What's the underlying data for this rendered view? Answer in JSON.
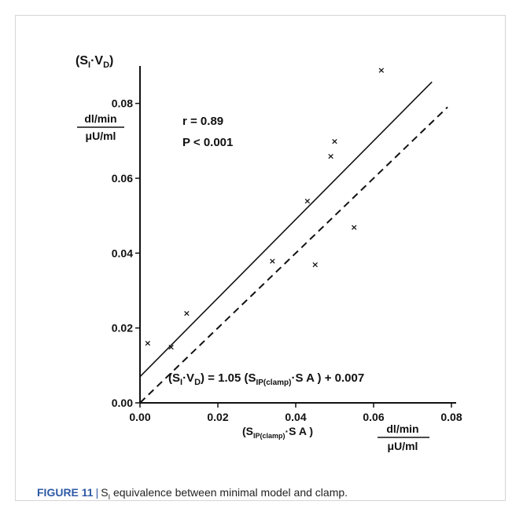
{
  "chart_data": {
    "type": "scatter",
    "xlim": [
      0,
      0.08
    ],
    "ylim": [
      0,
      0.09
    ],
    "x_ticks": [
      "0.00",
      "0.02",
      "0.04",
      "0.06",
      "0.08"
    ],
    "y_ticks": [
      "0.00",
      "0.02",
      "0.04",
      "0.06",
      "0.08"
    ],
    "grid": false,
    "points": [
      {
        "x": 0.002,
        "y": 0.016
      },
      {
        "x": 0.008,
        "y": 0.015
      },
      {
        "x": 0.012,
        "y": 0.024
      },
      {
        "x": 0.034,
        "y": 0.038
      },
      {
        "x": 0.043,
        "y": 0.054
      },
      {
        "x": 0.045,
        "y": 0.037
      },
      {
        "x": 0.049,
        "y": 0.066
      },
      {
        "x": 0.05,
        "y": 0.07
      },
      {
        "x": 0.055,
        "y": 0.047
      },
      {
        "x": 0.062,
        "y": 0.089
      }
    ],
    "regression_line": {
      "slope": 1.05,
      "intercept": 0.007,
      "style": "solid"
    },
    "identity_line": {
      "slope": 1,
      "intercept": 0,
      "style": "dashed"
    },
    "marker_glyph": "×",
    "y_axis_title": {
      "main": "S",
      "sub1": "I",
      "dot": "·V",
      "sub2": "D"
    },
    "y_axis_unit": {
      "num": "dl/min",
      "den": "μU/ml"
    },
    "x_axis_title": {
      "main": "(S",
      "sub": "IP(clamp)",
      "rest": "·S A )"
    },
    "x_axis_unit": {
      "num": "dl/min",
      "den": "μU/ml"
    },
    "stats": {
      "r": "r = 0.89",
      "p": "P < 0.001"
    },
    "equation": {
      "lhs_main": "(S",
      "lhs_sub1": "I",
      "lhs_dot": "·V",
      "lhs_sub2": "D",
      "mid": ") = 1.05 (S",
      "sub": "IP(clamp)",
      "rest": "·S A ) + 0.007"
    }
  },
  "caption": {
    "figure_label": "FIGURE 11",
    "separator": "|",
    "text_s": "S",
    "text_sub": "I",
    "text_rest": " equivalence between minimal model and clamp."
  }
}
